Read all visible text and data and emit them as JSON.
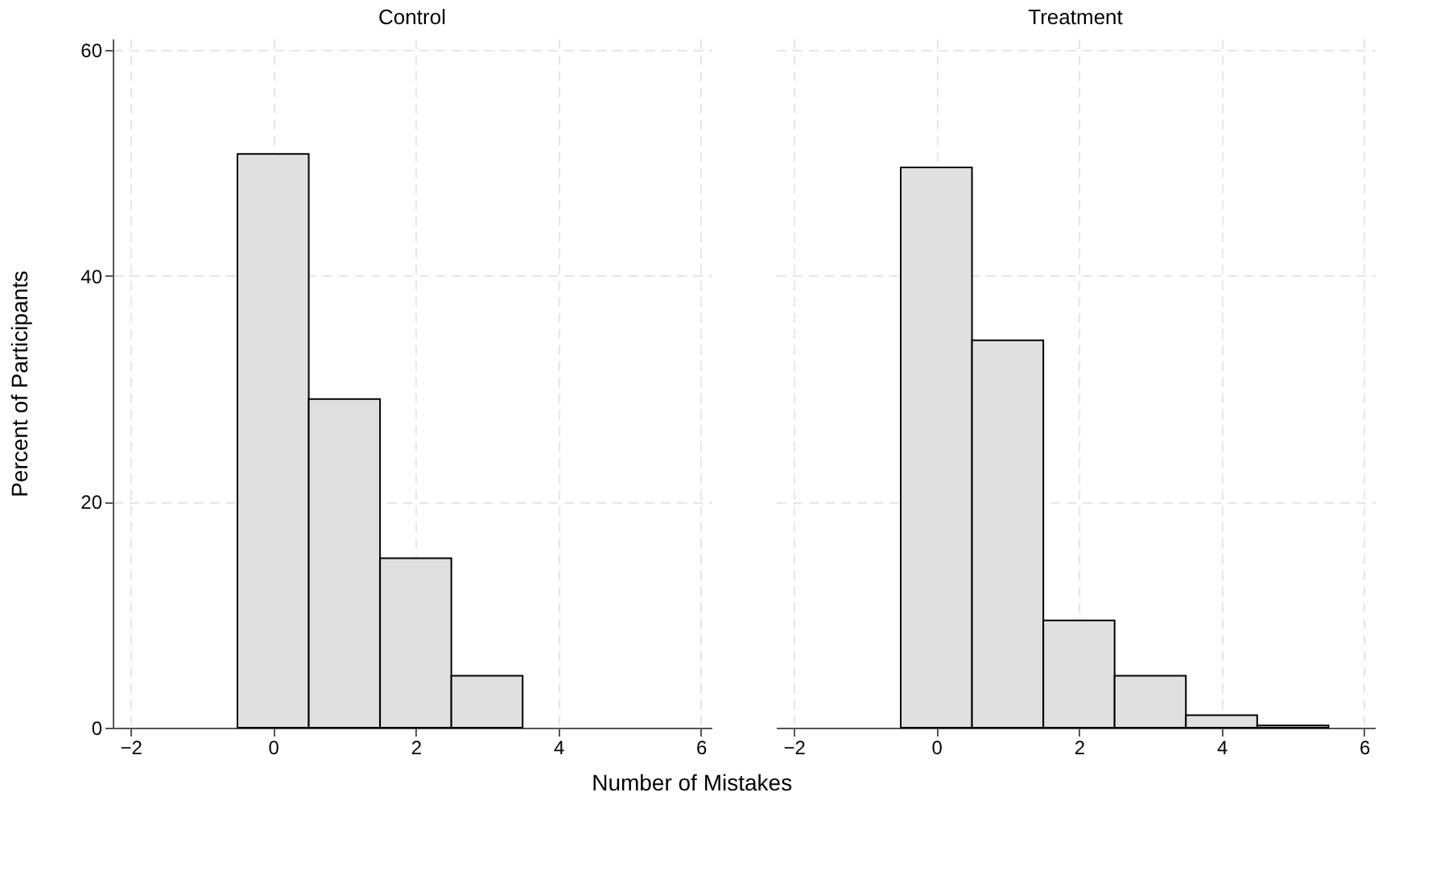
{
  "chart_data": [
    {
      "type": "histogram",
      "title": "Control",
      "xlabel": "Number of Mistakes",
      "ylabel": "Percent of Participants",
      "bins": [
        -0.5,
        0.5,
        1.5,
        2.5,
        3.5
      ],
      "values": [
        50.8,
        29.1,
        15.0,
        4.6
      ],
      "color": "#e0e0e0",
      "xlim": [
        -2.25,
        6.15
      ],
      "xticks": [
        -2,
        0,
        2,
        4,
        6
      ],
      "ylim": [
        0,
        61
      ],
      "yticks": [
        0,
        20,
        40,
        60
      ],
      "grid": true
    },
    {
      "type": "histogram",
      "title": "Treatment",
      "bins": [
        -0.5,
        0.5,
        1.5,
        2.5,
        3.5,
        4.5,
        5.5
      ],
      "values": [
        49.6,
        34.3,
        9.5,
        4.6,
        1.1,
        0.2
      ],
      "color": "#e0e0e0",
      "xlim": [
        -2.25,
        6.15
      ],
      "xticks": [
        -2,
        0,
        2,
        4,
        6
      ],
      "ylim": [
        0,
        61
      ],
      "yticks": [
        0,
        20,
        40,
        60
      ],
      "grid": true,
      "tick_labels": "x"
    }
  ]
}
